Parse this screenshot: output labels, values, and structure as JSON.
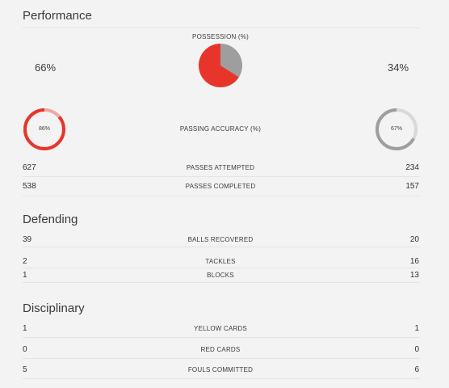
{
  "colors": {
    "home": "#e8352c",
    "home_light": "#f0a7a3",
    "away": "#9e9e9e",
    "away_light": "#d8d8d8"
  },
  "performance": {
    "title": "Performance",
    "possession": {
      "label": "POSSESSION (%)",
      "home_text": "66%",
      "away_text": "34%",
      "home_value": 66,
      "away_value": 34
    },
    "passing_accuracy": {
      "label": "PASSING ACCURACY (%)",
      "home_text": "86%",
      "away_text": "67%",
      "home_value": 86,
      "away_value": 67
    },
    "rows": [
      {
        "label": "PASSES ATTEMPTED",
        "home": "627",
        "away": "234"
      },
      {
        "label": "PASSES COMPLETED",
        "home": "538",
        "away": "157"
      }
    ]
  },
  "defending": {
    "title": "Defending",
    "rows": [
      {
        "label": "BALLS RECOVERED",
        "home": "39",
        "away": "20"
      },
      {
        "label": "TACKLES",
        "home": "2",
        "away": "16"
      },
      {
        "label": "BLOCKS",
        "home": "1",
        "away": "13"
      }
    ]
  },
  "disciplinary": {
    "title": "Disciplinary",
    "rows": [
      {
        "label": "YELLOW CARDS",
        "home": "1",
        "away": "1"
      },
      {
        "label": "RED CARDS",
        "home": "0",
        "away": "0"
      },
      {
        "label": "FOULS COMMITTED",
        "home": "5",
        "away": "6"
      }
    ]
  }
}
